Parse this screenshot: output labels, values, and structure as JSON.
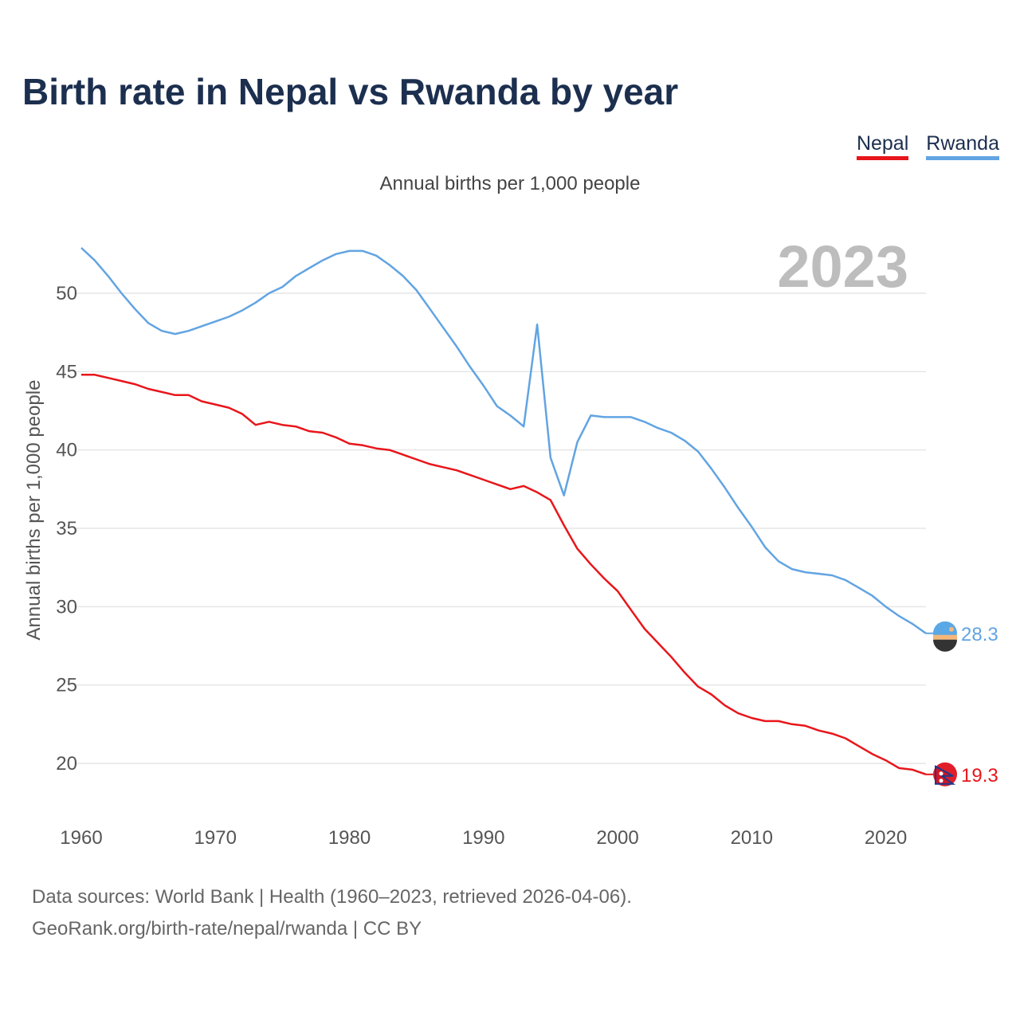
{
  "title": "Birth rate in Nepal vs Rwanda by year",
  "subtitle": "Annual births per 1,000 people",
  "legend": [
    {
      "label": "Nepal",
      "color": "#e8161b"
    },
    {
      "label": "Rwanda",
      "color": "#62a4e2"
    }
  ],
  "year_watermark": "2023",
  "footer": {
    "line1": "Data sources: World Bank | Health (1960–2023, retrieved 2026-04-06).",
    "line2": "GeoRank.org/birth-rate/nepal/rwanda | CC BY"
  },
  "chart_data": {
    "type": "line",
    "title": "Birth rate in Nepal vs Rwanda by year",
    "xlabel": "",
    "ylabel": "Annual births per 1,000 people",
    "xlim": [
      1960,
      2023
    ],
    "ylim": [
      17,
      53.5
    ],
    "x_ticks": [
      1960,
      1970,
      1980,
      1990,
      2000,
      2010,
      2020
    ],
    "y_ticks": [
      20,
      25,
      30,
      35,
      40,
      45,
      50
    ],
    "grid": true,
    "legend_position": "top-right",
    "x": [
      1960,
      1961,
      1962,
      1963,
      1964,
      1965,
      1966,
      1967,
      1968,
      1969,
      1970,
      1971,
      1972,
      1973,
      1974,
      1975,
      1976,
      1977,
      1978,
      1979,
      1980,
      1981,
      1982,
      1983,
      1984,
      1985,
      1986,
      1987,
      1988,
      1989,
      1990,
      1991,
      1992,
      1993,
      1994,
      1995,
      1996,
      1997,
      1998,
      1999,
      2000,
      2001,
      2002,
      2003,
      2004,
      2005,
      2006,
      2007,
      2008,
      2009,
      2010,
      2011,
      2012,
      2013,
      2014,
      2015,
      2016,
      2017,
      2018,
      2019,
      2020,
      2021,
      2022,
      2023
    ],
    "series": [
      {
        "name": "Nepal",
        "color": "#e8161b",
        "end_label": "19.3",
        "values": [
          44.8,
          44.8,
          44.6,
          44.4,
          44.2,
          43.9,
          43.7,
          43.5,
          43.5,
          43.1,
          42.9,
          42.7,
          42.3,
          41.6,
          41.8,
          41.6,
          41.5,
          41.2,
          41.1,
          40.8,
          40.4,
          40.3,
          40.1,
          40.0,
          39.7,
          39.4,
          39.1,
          38.9,
          38.7,
          38.4,
          38.1,
          37.8,
          37.5,
          37.7,
          37.3,
          36.8,
          35.2,
          33.7,
          32.7,
          31.8,
          31.0,
          29.8,
          28.6,
          27.7,
          26.8,
          25.8,
          24.9,
          24.4,
          23.7,
          23.2,
          22.9,
          22.7,
          22.7,
          22.5,
          22.4,
          22.1,
          21.9,
          21.6,
          21.1,
          20.6,
          20.2,
          19.7,
          19.6,
          19.3
        ]
      },
      {
        "name": "Rwanda",
        "color": "#62a4e2",
        "end_label": "28.3",
        "values": [
          52.9,
          52.1,
          51.1,
          50.0,
          49.0,
          48.1,
          47.6,
          47.4,
          47.6,
          47.9,
          48.2,
          48.5,
          48.9,
          49.4,
          50.0,
          50.4,
          51.1,
          51.6,
          52.1,
          52.5,
          52.7,
          52.7,
          52.4,
          51.8,
          51.1,
          50.2,
          49.0,
          47.8,
          46.6,
          45.3,
          44.1,
          42.8,
          42.2,
          41.5,
          48.0,
          39.5,
          37.1,
          40.5,
          42.2,
          42.1,
          42.1,
          42.1,
          41.8,
          41.4,
          41.1,
          40.6,
          39.9,
          38.8,
          37.6,
          36.3,
          35.1,
          33.8,
          32.9,
          32.4,
          32.2,
          32.1,
          32.0,
          31.7,
          31.2,
          30.7,
          30.0,
          29.4,
          28.9,
          28.3
        ]
      }
    ]
  }
}
